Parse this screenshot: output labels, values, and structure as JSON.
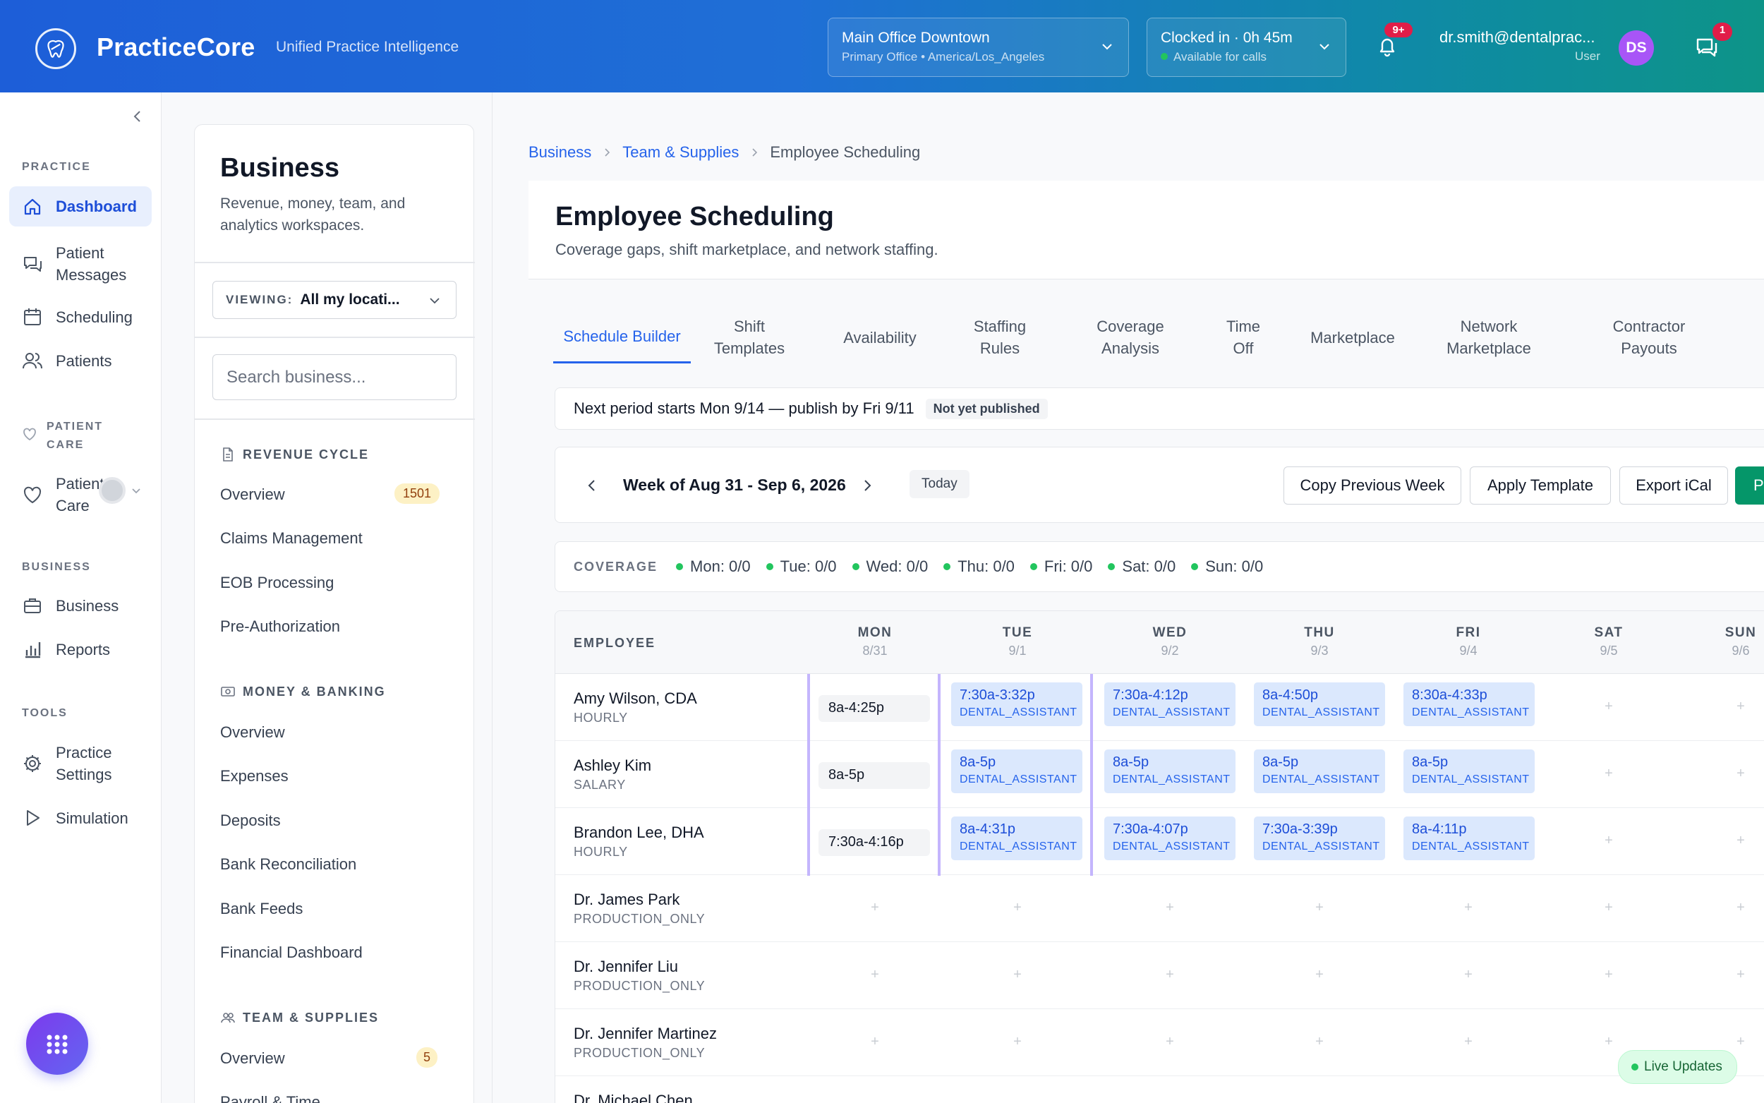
{
  "header": {
    "brand": "PracticeCore",
    "tagline": "Unified Practice Intelligence",
    "location": {
      "title": "Main Office Downtown",
      "subtitle": "Primary Office • America/Los_Angeles"
    },
    "clock": {
      "title": "Clocked in · 0h 45m",
      "subtitle": "Available for calls"
    },
    "notifications_badge": "9+",
    "user_email": "dr.smith@dentalprac...",
    "user_role": "User",
    "avatar_initials": "DS",
    "messages_badge": "1"
  },
  "nav": {
    "sections": {
      "practice": "PRACTICE",
      "patient_care": "PATIENT CARE",
      "business": "BUSINESS",
      "tools": "TOOLS"
    },
    "items": {
      "dashboard": "Dashboard",
      "patient_messages": "Patient Messages",
      "scheduling": "Scheduling",
      "patients": "Patients",
      "patient_care": "Patient Care",
      "business": "Business",
      "reports": "Reports",
      "practice_settings": "Practice Settings",
      "simulation": "Simulation"
    },
    "active": "dashboard"
  },
  "panel": {
    "title": "Business",
    "description": "Revenue, money, team, and analytics workspaces.",
    "viewing_label": "VIEWING:",
    "viewing_value": "All my locati...",
    "search_placeholder": "Search business...",
    "groups": {
      "revenue": {
        "title": "REVENUE CYCLE",
        "items": [
          "Overview",
          "Claims Management",
          "EOB Processing",
          "Pre-Authorization"
        ],
        "badge": "1501"
      },
      "money": {
        "title": "MONEY & BANKING",
        "items": [
          "Overview",
          "Expenses",
          "Deposits",
          "Bank Reconciliation",
          "Bank Feeds",
          "Financial Dashboard"
        ]
      },
      "team": {
        "title": "TEAM & SUPPLIES",
        "items": [
          "Overview",
          "Payroll & Time"
        ],
        "badge": "5"
      }
    }
  },
  "breadcrumb": {
    "items": [
      "Business",
      "Team & Supplies"
    ],
    "current": "Employee Scheduling"
  },
  "page": {
    "title": "Employee Scheduling",
    "subtitle": "Coverage gaps, shift marketplace, and network staffing."
  },
  "tabs": [
    "Schedule Builder",
    "Shift Templates",
    "Availability",
    "Staffing Rules",
    "Coverage Analysis",
    "Time Off",
    "Marketplace",
    "Network Marketplace",
    "Contractor Payouts"
  ],
  "active_tab": "Schedule Builder",
  "notice": {
    "text": "Next period starts Mon 9/14 — publish by Fri 9/11",
    "pill": "Not yet published"
  },
  "week": {
    "label": "Week of Aug 31 - Sep 6, 2026",
    "today": "Today",
    "copy": "Copy Previous Week",
    "apply": "Apply Template",
    "export": "Export iCal",
    "publish": "P"
  },
  "coverage": {
    "label": "COVERAGE",
    "items": [
      "Mon: 0/0",
      "Tue: 0/0",
      "Wed: 0/0",
      "Thu: 0/0",
      "Fri: 0/0",
      "Sat: 0/0",
      "Sun: 0/0"
    ]
  },
  "schedule": {
    "employee_header": "EMPLOYEE",
    "days": [
      {
        "name": "MON",
        "date": "8/31"
      },
      {
        "name": "TUE",
        "date": "9/1"
      },
      {
        "name": "WED",
        "date": "9/2"
      },
      {
        "name": "THU",
        "date": "9/3"
      },
      {
        "name": "FRI",
        "date": "9/4"
      },
      {
        "name": "SAT",
        "date": "9/5"
      },
      {
        "name": "SUN",
        "date": "9/6"
      }
    ],
    "rows": [
      {
        "name": "Amy Wilson, CDA",
        "type": "HOURLY",
        "mon": "8a-4:25p",
        "shifts": [
          {
            "time": "7:30a-3:32p",
            "role": "DENTAL_ASSISTANT"
          },
          {
            "time": "7:30a-4:12p",
            "role": "DENTAL_ASSISTANT"
          },
          {
            "time": "8a-4:50p",
            "role": "DENTAL_ASSISTANT"
          },
          {
            "time": "8:30a-4:33p",
            "role": "DENTAL_ASSISTANT"
          }
        ]
      },
      {
        "name": "Ashley Kim",
        "type": "SALARY",
        "mon": "8a-5p",
        "shifts": [
          {
            "time": "8a-5p",
            "role": "DENTAL_ASSISTANT"
          },
          {
            "time": "8a-5p",
            "role": "DENTAL_ASSISTANT"
          },
          {
            "time": "8a-5p",
            "role": "DENTAL_ASSISTANT"
          },
          {
            "time": "8a-5p",
            "role": "DENTAL_ASSISTANT"
          }
        ]
      },
      {
        "name": "Brandon Lee, DHA",
        "type": "HOURLY",
        "mon": "7:30a-4:16p",
        "shifts": [
          {
            "time": "8a-4:31p",
            "role": "DENTAL_ASSISTANT"
          },
          {
            "time": "7:30a-4:07p",
            "role": "DENTAL_ASSISTANT"
          },
          {
            "time": "7:30a-3:39p",
            "role": "DENTAL_ASSISTANT"
          },
          {
            "time": "8a-4:11p",
            "role": "DENTAL_ASSISTANT"
          }
        ]
      },
      {
        "name": "Dr. James Park",
        "type": "PRODUCTION_ONLY"
      },
      {
        "name": "Dr. Jennifer Liu",
        "type": "PRODUCTION_ONLY"
      },
      {
        "name": "Dr. Jennifer Martinez",
        "type": "PRODUCTION_ONLY"
      },
      {
        "name": "Dr. Michael Chen",
        "type": ""
      }
    ],
    "empty_symbol": "+"
  },
  "live_updates": "Live Updates"
}
